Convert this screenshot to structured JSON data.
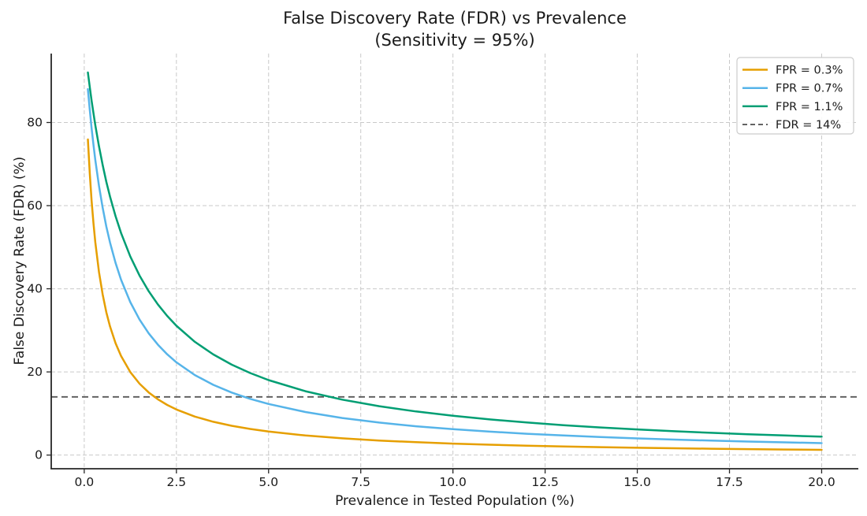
{
  "chart_data": {
    "type": "line",
    "title": "False Discovery Rate (FDR) vs Prevalence",
    "subtitle": "(Sensitivity = 95%)",
    "xlabel": "Prevalence in Tested Population (%)",
    "ylabel": "False Discovery Rate (FDR) (%)",
    "sensitivity_pct": 95,
    "xlim": [
      -0.895,
      20.995
    ],
    "ylim": [
      -3.29,
      96.58
    ],
    "x_ticks": [
      0.0,
      2.5,
      5.0,
      7.5,
      10.0,
      12.5,
      15.0,
      17.5,
      20.0
    ],
    "x_tick_labels": [
      "0.0",
      "2.5",
      "5.0",
      "7.5",
      "10.0",
      "12.5",
      "15.0",
      "17.5",
      "20.0"
    ],
    "y_ticks": [
      0,
      20,
      40,
      60,
      80
    ],
    "y_tick_labels": [
      "0",
      "20",
      "40",
      "60",
      "80"
    ],
    "grid": {
      "visible": true,
      "style": "dashed",
      "color": "#c9c9c9"
    },
    "x": [
      0.1,
      0.15,
      0.2,
      0.25,
      0.3,
      0.4,
      0.5,
      0.6,
      0.7,
      0.85,
      1.0,
      1.25,
      1.5,
      1.75,
      2.0,
      2.25,
      2.5,
      3.0,
      3.5,
      4.0,
      4.5,
      5.0,
      6.0,
      7.0,
      8.0,
      9.0,
      10.0,
      11.0,
      12.0,
      13.0,
      14.0,
      15.0,
      16.0,
      17.0,
      18.0,
      19.0,
      20.0
    ],
    "series": [
      {
        "name": "FPR = 0.3%",
        "fpr_pct": 0.3,
        "color": "#E69F00",
        "values": [
          75.93,
          67.76,
          61.18,
          55.75,
          51.21,
          44.02,
          38.59,
          34.35,
          30.94,
          26.92,
          23.82,
          19.97,
          17.18,
          15.06,
          13.4,
          12.06,
          10.97,
          9.26,
          8.01,
          7.04,
          6.28,
          5.66,
          4.71,
          4.03,
          3.5,
          3.09,
          2.76,
          2.49,
          2.26,
          2.07,
          1.9,
          1.76,
          1.63,
          1.52,
          1.42,
          1.33,
          1.25
        ]
      },
      {
        "name": "FPR = 0.7%",
        "fpr_pct": 0.7,
        "color": "#56B4E9",
        "values": [
          88.04,
          83.07,
          78.62,
          74.62,
          71.0,
          64.72,
          59.45,
          54.97,
          51.11,
          46.22,
          42.18,
          36.79,
          32.61,
          29.26,
          26.53,
          24.25,
          22.32,
          19.24,
          16.89,
          15.03,
          13.52,
          12.28,
          10.35,
          8.92,
          7.81,
          6.93,
          6.22,
          5.63,
          5.13,
          4.7,
          4.33,
          4.01,
          3.72,
          3.47,
          3.25,
          3.05,
          2.86
        ]
      },
      {
        "name": "FPR = 1.1%",
        "fpr_pct": 1.1,
        "color": "#009E73",
        "values": [
          92.04,
          88.52,
          85.25,
          82.21,
          79.37,
          74.25,
          69.74,
          65.73,
          62.16,
          57.46,
          53.41,
          47.77,
          43.19,
          39.4,
          36.2,
          33.47,
          31.11,
          27.24,
          24.2,
          21.75,
          19.73,
          18.03,
          15.36,
          13.33,
          11.75,
          10.48,
          9.44,
          8.57,
          7.83,
          7.19,
          6.64,
          6.16,
          5.73,
          5.35,
          5.01,
          4.7,
          4.43
        ]
      }
    ],
    "reference_line": {
      "name": "FDR = 14%",
      "y": 14,
      "color": "#595959",
      "style": "dashed"
    },
    "legend": {
      "position": "upper right",
      "entries": [
        {
          "label": "FPR = 0.3%",
          "color": "#E69F00",
          "line_style": "solid"
        },
        {
          "label": "FPR = 0.7%",
          "color": "#56B4E9",
          "line_style": "solid"
        },
        {
          "label": "FPR = 1.1%",
          "color": "#009E73",
          "line_style": "solid"
        },
        {
          "label": "FDR = 14%",
          "color": "#595959",
          "line_style": "dashed"
        }
      ]
    },
    "colors": {
      "background": "#ffffff",
      "text": "#1a1a1a",
      "spine": "#262626",
      "grid": "#c9c9c9"
    }
  }
}
